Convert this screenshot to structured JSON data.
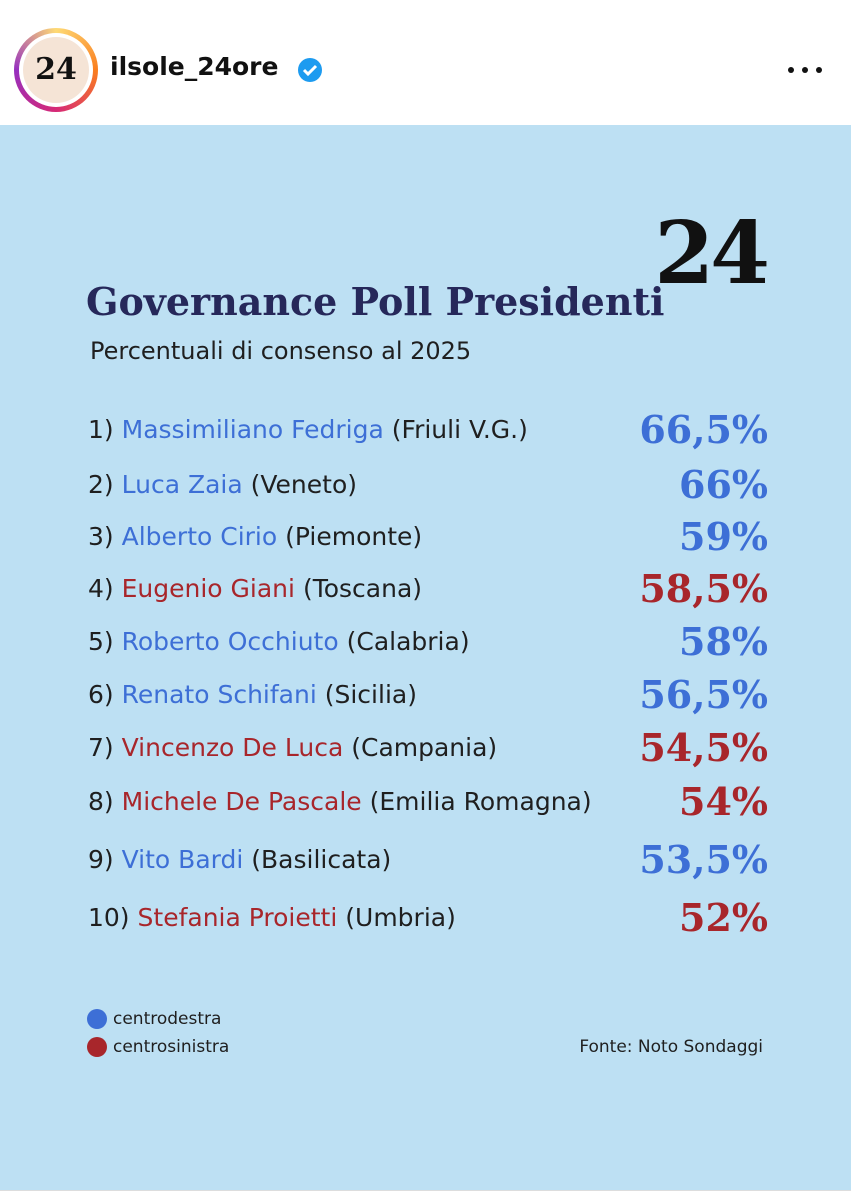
{
  "header": {
    "avatar_logo": "24",
    "username": "ilsole_24ore"
  },
  "post": {
    "logo": "24",
    "title": "Governance Poll Presidenti",
    "subtitle": "Percentuali di consenso al 2025",
    "rows": [
      {
        "rank": "1)",
        "name": "Massimiliano Fedriga",
        "region": "(Friuli V.G.)",
        "value": "66,5%",
        "color": "#3d6fd6"
      },
      {
        "rank": "2)",
        "name": "Luca Zaia",
        "region": "(Veneto)",
        "value": "66%",
        "color": "#3d6fd6"
      },
      {
        "rank": "3)",
        "name": "Alberto Cirio",
        "region": "(Piemonte)",
        "value": "59%",
        "color": "#3d6fd6"
      },
      {
        "rank": "4)",
        "name": "Eugenio Giani",
        "region": "(Toscana)",
        "value": "58,5%",
        "color": "#a8262b"
      },
      {
        "rank": "5)",
        "name": "Roberto Occhiuto",
        "region": "(Calabria)",
        "value": "58%",
        "color": "#3d6fd6"
      },
      {
        "rank": "6)",
        "name": "Renato Schifani",
        "region": "(Sicilia)",
        "value": "56,5%",
        "color": "#3d6fd6"
      },
      {
        "rank": "7)",
        "name": "Vincenzo De Luca",
        "region": "(Campania)",
        "value": "54,5%",
        "color": "#a8262b"
      },
      {
        "rank": "8)",
        "name": "Michele De Pascale",
        "region": "(Emilia Romagna)",
        "value": "54%",
        "color": "#a8262b"
      },
      {
        "rank": "9)",
        "name": "Vito Bardi",
        "region": "(Basilicata)",
        "value": "53,5%",
        "color": "#3d6fd6"
      },
      {
        "rank": "10)",
        "name": "Stefania Proietti",
        "region": "(Umbria)",
        "value": "52%",
        "color": "#a8262b"
      }
    ],
    "legend": [
      {
        "label": "centrodestra",
        "color": "#3d6fd6"
      },
      {
        "label": "centrosinistra",
        "color": "#a8262b"
      }
    ],
    "source": "Fonte: Noto Sondaggi"
  }
}
